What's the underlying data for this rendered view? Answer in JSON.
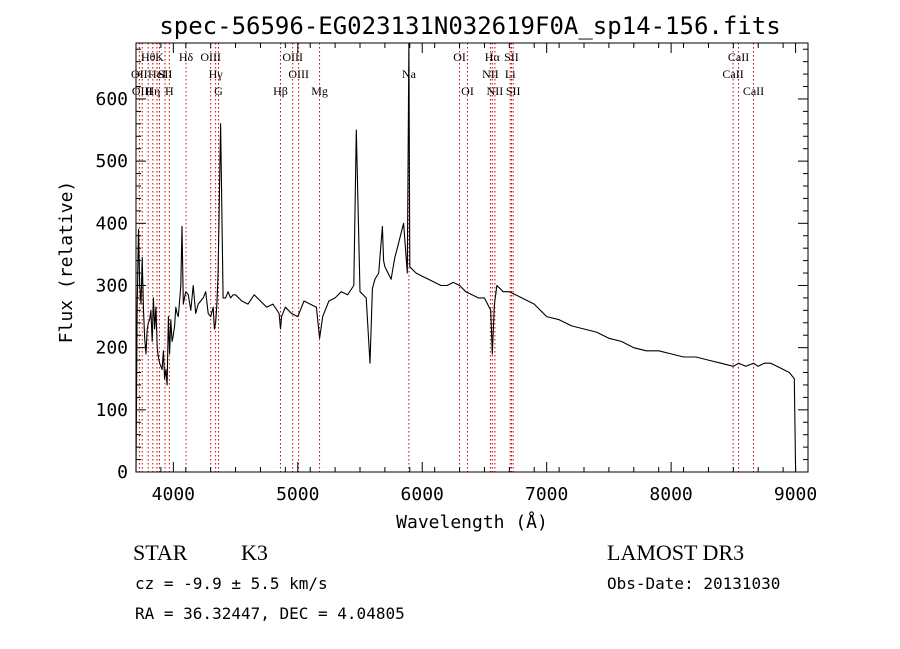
{
  "chart_data": {
    "type": "line",
    "title": "spec-56596-EG023131N032619F0A_sp14-156.fits",
    "xlabel": "Wavelength (Å)",
    "ylabel": "Flux (relative)",
    "xlim": [
      3700,
      9100
    ],
    "ylim": [
      0,
      690
    ],
    "x_ticks": [
      4000,
      5000,
      6000,
      7000,
      8000,
      9000
    ],
    "y_ticks": [
      0,
      100,
      200,
      300,
      400,
      500,
      600
    ],
    "grid": false,
    "series": [
      {
        "color": "#000000",
        "x": [
          3700,
          3710,
          3720,
          3730,
          3740,
          3750,
          3760,
          3770,
          3780,
          3790,
          3800,
          3810,
          3820,
          3830,
          3840,
          3850,
          3860,
          3870,
          3880,
          3890,
          3900,
          3910,
          3920,
          3930,
          3940,
          3950,
          3960,
          3970,
          3980,
          3990,
          4000,
          4010,
          4020,
          4030,
          4040,
          4050,
          4060,
          4070,
          4080,
          4090,
          4100,
          4120,
          4140,
          4160,
          4180,
          4200,
          4220,
          4240,
          4260,
          4280,
          4300,
          4320,
          4330,
          4340,
          4350,
          4360,
          4380,
          4400,
          4420,
          4440,
          4460,
          4480,
          4500,
          4550,
          4600,
          4650,
          4700,
          4750,
          4800,
          4850,
          4861,
          4870,
          4900,
          4950,
          5000,
          5050,
          5100,
          5150,
          5175,
          5200,
          5250,
          5300,
          5350,
          5400,
          5450,
          5470,
          5500,
          5550,
          5580,
          5600,
          5620,
          5650,
          5680,
          5690,
          5700,
          5750,
          5780,
          5800,
          5850,
          5880,
          5893,
          5900,
          5950,
          6000,
          6050,
          6100,
          6150,
          6200,
          6250,
          6300,
          6350,
          6400,
          6450,
          6500,
          6550,
          6563,
          6580,
          6600,
          6650,
          6700,
          6750,
          6800,
          6850,
          6900,
          6950,
          7000,
          7100,
          7200,
          7300,
          7400,
          7500,
          7600,
          7700,
          7800,
          7900,
          8000,
          8100,
          8200,
          8300,
          8400,
          8500,
          8542,
          8600,
          8662,
          8700,
          8750,
          8800,
          8850,
          8900,
          8950,
          8990,
          9000
        ],
        "values": [
          0,
          270,
          390,
          300,
          270,
          345,
          260,
          215,
          190,
          230,
          240,
          245,
          260,
          210,
          280,
          230,
          265,
          200,
          185,
          175,
          170,
          165,
          195,
          150,
          165,
          140,
          250,
          190,
          245,
          210,
          220,
          235,
          265,
          255,
          250,
          275,
          300,
          395,
          270,
          280,
          290,
          285,
          260,
          300,
          255,
          270,
          275,
          280,
          290,
          255,
          250,
          265,
          230,
          240,
          270,
          320,
          560,
          280,
          280,
          290,
          280,
          285,
          285,
          275,
          270,
          285,
          275,
          265,
          270,
          255,
          230,
          250,
          265,
          255,
          250,
          275,
          270,
          265,
          215,
          250,
          275,
          280,
          290,
          285,
          300,
          550,
          290,
          280,
          175,
          295,
          310,
          320,
          395,
          340,
          330,
          310,
          345,
          360,
          400,
          320,
          700,
          330,
          320,
          315,
          310,
          305,
          300,
          300,
          305,
          300,
          290,
          285,
          280,
          280,
          260,
          190,
          270,
          300,
          290,
          290,
          285,
          280,
          275,
          270,
          260,
          250,
          245,
          235,
          230,
          225,
          215,
          210,
          200,
          195,
          195,
          190,
          185,
          185,
          180,
          175,
          170,
          175,
          170,
          175,
          170,
          175,
          175,
          170,
          165,
          160,
          150,
          0
        ],
        "units_note": ""
      }
    ],
    "lines": [
      {
        "wave": 3727,
        "labels": [
          "OII"
        ],
        "row": 2
      },
      {
        "wave": 3750,
        "labels": [
          "OIII"
        ],
        "row": 3
      },
      {
        "wave": 3798,
        "labels": [
          "Hθ"
        ],
        "row": 1
      },
      {
        "wave": 3835,
        "labels": [
          "Hη"
        ],
        "row": 3
      },
      {
        "wave": 3869,
        "labels": [
          "HeI"
        ],
        "row": 2
      },
      {
        "wave": 3889,
        "labels": [
          "K"
        ],
        "row": 1
      },
      {
        "wave": 3933,
        "labels": [
          "SII"
        ],
        "row": 2
      },
      {
        "wave": 3968,
        "labels": [
          "H"
        ],
        "row": 3
      },
      {
        "wave": 4102,
        "labels": [
          "Hδ"
        ],
        "row": 1
      },
      {
        "wave": 4300,
        "labels": [
          "OIII"
        ],
        "row": 1
      },
      {
        "wave": 4340,
        "labels": [
          "Hγ"
        ],
        "row": 2
      },
      {
        "wave": 4363,
        "labels": [
          "G"
        ],
        "row": 3
      },
      {
        "wave": 4861,
        "labels": [
          "Hβ"
        ],
        "row": 3
      },
      {
        "wave": 4959,
        "labels": [
          "OIII"
        ],
        "row": 1
      },
      {
        "wave": 5007,
        "labels": [
          "OIII"
        ],
        "row": 2
      },
      {
        "wave": 5175,
        "labels": [
          "Mg"
        ],
        "row": 3
      },
      {
        "wave": 5893,
        "labels": [
          "Na"
        ],
        "row": 2
      },
      {
        "wave": 6300,
        "labels": [
          "OI"
        ],
        "row": 1
      },
      {
        "wave": 6364,
        "labels": [
          "OI"
        ],
        "row": 3
      },
      {
        "wave": 6548,
        "labels": [
          "NII"
        ],
        "row": 2
      },
      {
        "wave": 6563,
        "labels": [
          "Hα"
        ],
        "row": 1
      },
      {
        "wave": 6584,
        "labels": [
          "NII"
        ],
        "row": 3
      },
      {
        "wave": 6707,
        "labels": [
          "Li"
        ],
        "row": 2
      },
      {
        "wave": 6717,
        "labels": [
          "SII"
        ],
        "row": 1
      },
      {
        "wave": 6731,
        "labels": [
          "SII"
        ],
        "row": 3
      },
      {
        "wave": 8498,
        "labels": [
          "CaII"
        ],
        "row": 2
      },
      {
        "wave": 8542,
        "labels": [
          "CaII"
        ],
        "row": 1
      },
      {
        "wave": 8662,
        "labels": [
          "CaII"
        ],
        "row": 3
      }
    ]
  },
  "info": {
    "class": "STAR",
    "subclass": "K3",
    "survey": "LAMOST DR3",
    "cz": "cz = -9.9 ± 5.5 km/s",
    "obs_date": "Obs-Date: 20131030",
    "coords": "RA =  36.32447, DEC =   4.04805"
  },
  "colors": {
    "line_marker": "#cc0000",
    "spectrum": "#000000",
    "axes": "#000000"
  }
}
